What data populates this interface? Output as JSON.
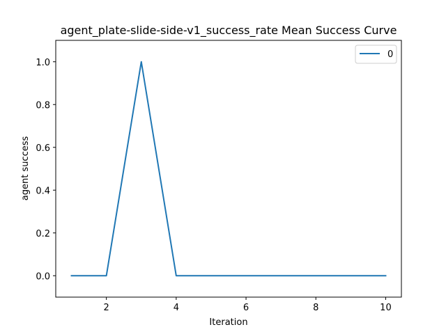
{
  "chart_data": {
    "type": "line",
    "title": "agent_plate-slide-side-v1_success_rate Mean Success Curve",
    "xlabel": "Iteration",
    "ylabel": "agent success",
    "x": [
      1,
      2,
      3,
      4,
      5,
      6,
      7,
      8,
      9,
      10
    ],
    "series": [
      {
        "name": "0",
        "values": [
          0,
          0,
          1,
          0,
          0,
          0,
          0,
          0,
          0,
          0
        ],
        "color": "#1f77b4"
      }
    ],
    "xlim": [
      0.55,
      10.45
    ],
    "ylim": [
      -0.1,
      1.1
    ],
    "xticks": [
      2,
      4,
      6,
      8,
      10
    ],
    "yticks": [
      0.0,
      0.2,
      0.4,
      0.6,
      0.8,
      1.0
    ],
    "xtick_labels": [
      "2",
      "4",
      "6",
      "8",
      "10"
    ],
    "ytick_labels": [
      "0.0",
      "0.2",
      "0.4",
      "0.6",
      "0.8",
      "1.0"
    ],
    "legend": {
      "placement": "top-right",
      "entries": [
        "0"
      ]
    },
    "grid": false
  }
}
